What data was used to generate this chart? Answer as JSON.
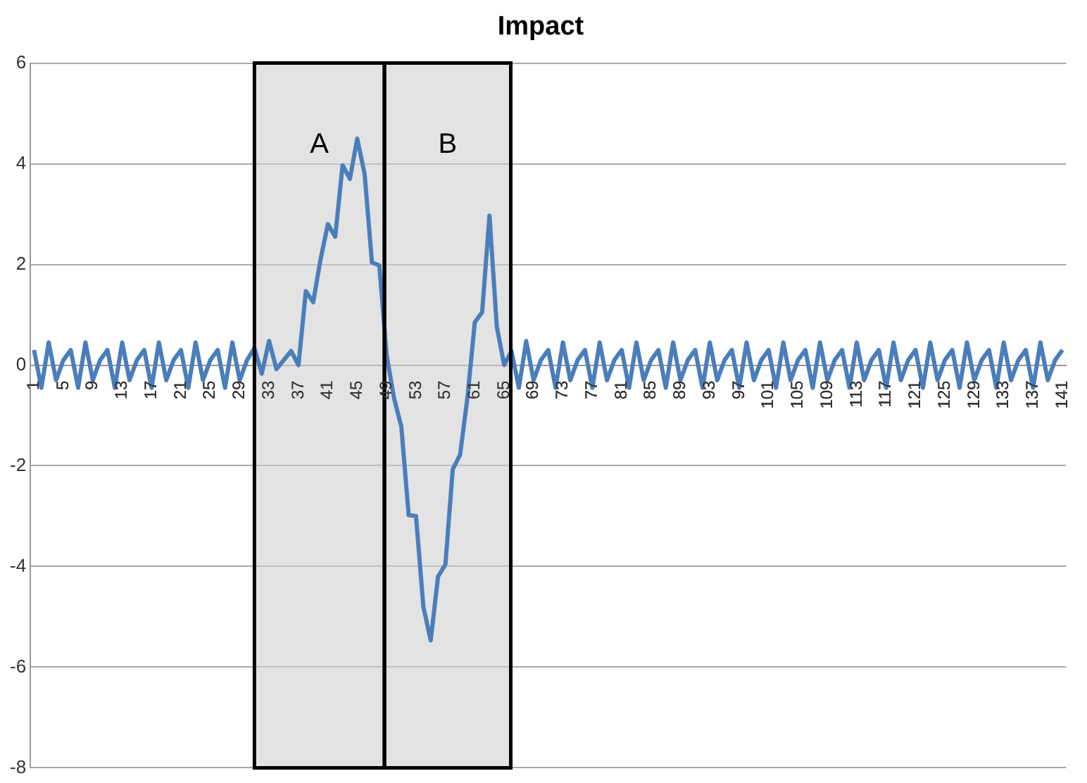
{
  "chart_data": {
    "type": "line",
    "title": "Impact",
    "x": [
      1,
      2,
      3,
      4,
      5,
      6,
      7,
      8,
      9,
      10,
      11,
      12,
      13,
      14,
      15,
      16,
      17,
      18,
      19,
      20,
      21,
      22,
      23,
      24,
      25,
      26,
      27,
      28,
      29,
      30,
      31,
      32,
      33,
      34,
      35,
      36,
      37,
      38,
      39,
      40,
      41,
      42,
      43,
      44,
      45,
      46,
      47,
      48,
      49,
      50,
      51,
      52,
      53,
      54,
      55,
      56,
      57,
      58,
      59,
      60,
      61,
      62,
      63,
      64,
      65,
      66,
      67,
      68,
      69,
      70,
      71,
      72,
      73,
      74,
      75,
      76,
      77,
      78,
      79,
      80,
      81,
      82,
      83,
      84,
      85,
      86,
      87,
      88,
      89,
      90,
      91,
      92,
      93,
      94,
      95,
      96,
      97,
      98,
      99,
      100,
      101,
      102,
      103,
      104,
      105,
      106,
      107,
      108,
      109,
      110,
      111,
      112,
      113,
      114,
      115,
      116,
      117,
      118,
      119,
      120,
      121,
      122,
      123,
      124,
      125,
      126,
      127,
      128,
      129,
      130,
      131,
      132,
      133,
      134,
      135,
      136,
      137,
      138,
      139,
      140,
      141
    ],
    "series": [
      {
        "color": "#4a7ebb",
        "values": [
          0.3,
          -0.45,
          0.45,
          -0.3,
          0.1,
          0.3,
          -0.45,
          0.45,
          -0.3,
          0.1,
          0.3,
          -0.45,
          0.45,
          -0.3,
          0.1,
          0.3,
          -0.45,
          0.45,
          -0.3,
          0.1,
          0.3,
          -0.45,
          0.45,
          -0.3,
          0.1,
          0.3,
          -0.45,
          0.45,
          -0.3,
          0.1,
          0.34,
          -0.17,
          0.48,
          -0.08,
          0.1,
          0.28,
          0,
          1.47,
          1.25,
          2.1,
          2.8,
          2.55,
          3.97,
          3.7,
          4.5,
          3.8,
          2.04,
          1.98,
          0.2,
          -0.65,
          -1.22,
          -2.98,
          -3,
          -4.8,
          -5.47,
          -4.2,
          -3.96,
          -2.07,
          -1.78,
          -0.65,
          0.85,
          1.05,
          2.97,
          0.76,
          0,
          0.28,
          -0.45,
          0.48,
          -0.3,
          0.1,
          0.3,
          -0.45,
          0.45,
          -0.3,
          0.1,
          0.3,
          -0.45,
          0.45,
          -0.3,
          0.1,
          0.3,
          -0.45,
          0.45,
          -0.3,
          0.1,
          0.3,
          -0.45,
          0.45,
          -0.3,
          0.1,
          0.3,
          -0.45,
          0.45,
          -0.3,
          0.1,
          0.3,
          -0.45,
          0.45,
          -0.3,
          0.1,
          0.3,
          -0.45,
          0.45,
          -0.3,
          0.1,
          0.3,
          -0.45,
          0.45,
          -0.3,
          0.1,
          0.3,
          -0.45,
          0.45,
          -0.3,
          0.1,
          0.3,
          -0.45,
          0.45,
          -0.3,
          0.1,
          0.3,
          -0.45,
          0.45,
          -0.3,
          0.1,
          0.3,
          -0.45,
          0.45,
          -0.3,
          0.1,
          0.3,
          -0.45,
          0.45,
          -0.3,
          0.1,
          0.3,
          -0.45,
          0.45,
          -0.3,
          0.1,
          0.3
        ]
      }
    ],
    "xlim": [
      0.5,
      141.5
    ],
    "xticks": [
      1,
      5,
      9,
      13,
      17,
      21,
      25,
      29,
      33,
      37,
      41,
      45,
      49,
      53,
      57,
      61,
      65,
      69,
      73,
      77,
      81,
      85,
      89,
      93,
      97,
      101,
      105,
      109,
      113,
      117,
      121,
      125,
      129,
      133,
      137,
      141
    ],
    "ylim": [
      -8,
      6
    ],
    "yticks": [
      -8,
      -6,
      -4,
      -2,
      0,
      2,
      4,
      6
    ],
    "grid": "y",
    "bands": [
      {
        "axis": "x",
        "from": 31,
        "to": 48.7,
        "label": "A",
        "color": "#d0d0d0"
      },
      {
        "axis": "x",
        "from": 48.7,
        "to": 65.9,
        "label": "B",
        "color": "#d0d0d0"
      }
    ]
  }
}
